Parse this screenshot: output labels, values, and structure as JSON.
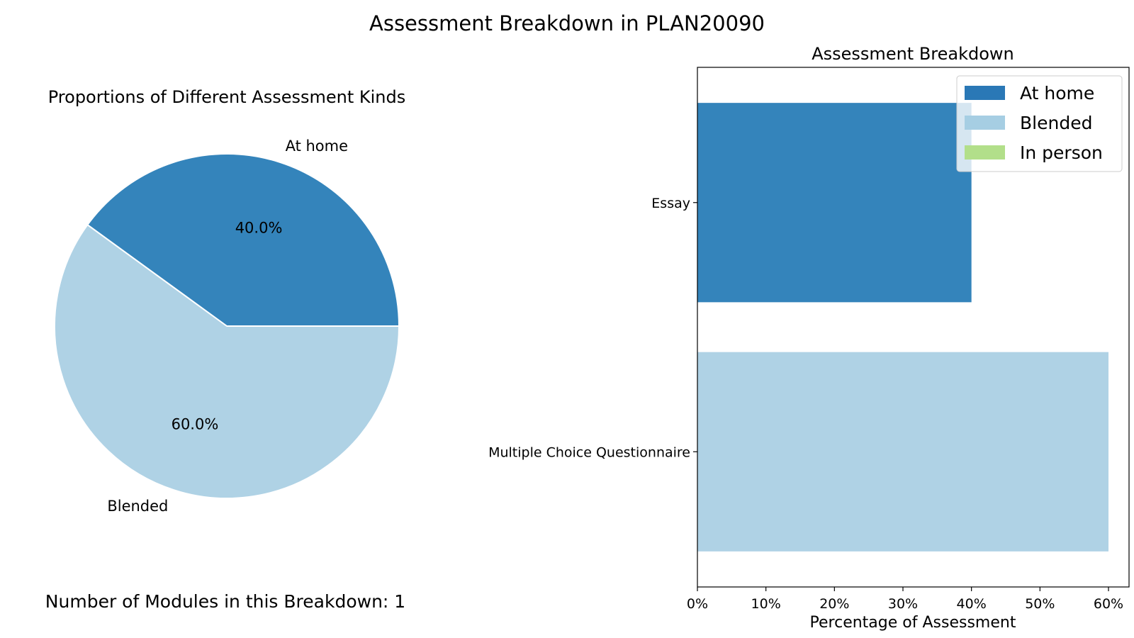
{
  "figure": {
    "title": "Assessment Breakdown in PLAN20090"
  },
  "chart_data": [
    {
      "type": "pie",
      "title": "Proportions of Different Assessment Kinds",
      "labels": [
        "At home",
        "Blended"
      ],
      "values": [
        40.0,
        60.0
      ],
      "percent_labels": [
        "40.0%",
        "60.0%"
      ],
      "colors": [
        "#3484bb",
        "#afd2e5"
      ],
      "start_angle_deg": 0,
      "footnote": "Number of Modules in this Breakdown: 1"
    },
    {
      "type": "bar",
      "orientation": "horizontal",
      "title": "Assessment Breakdown",
      "categories": [
        "Essay",
        "Multiple Choice Questionnaire"
      ],
      "series": [
        {
          "name": "At home",
          "values": [
            40,
            0
          ],
          "color": "#3484bb"
        },
        {
          "name": "Blended",
          "values": [
            0,
            60
          ],
          "color": "#afd2e5"
        },
        {
          "name": "In person",
          "values": [
            0,
            0
          ],
          "color": "#b2df8a"
        }
      ],
      "xlabel": "Percentage of Assessment",
      "ylabel": "",
      "xlim": [
        0,
        63
      ],
      "xticks": [
        0,
        10,
        20,
        30,
        40,
        50,
        60
      ],
      "xtick_labels": [
        "0%",
        "10%",
        "20%",
        "30%",
        "40%",
        "50%",
        "60%"
      ],
      "legend": {
        "placement": "top-right",
        "entries": [
          "At home",
          "Blended",
          "In person"
        ],
        "colors": [
          "#2a78b6",
          "#a6cee3",
          "#b2df8a"
        ]
      },
      "grid": false
    }
  ]
}
